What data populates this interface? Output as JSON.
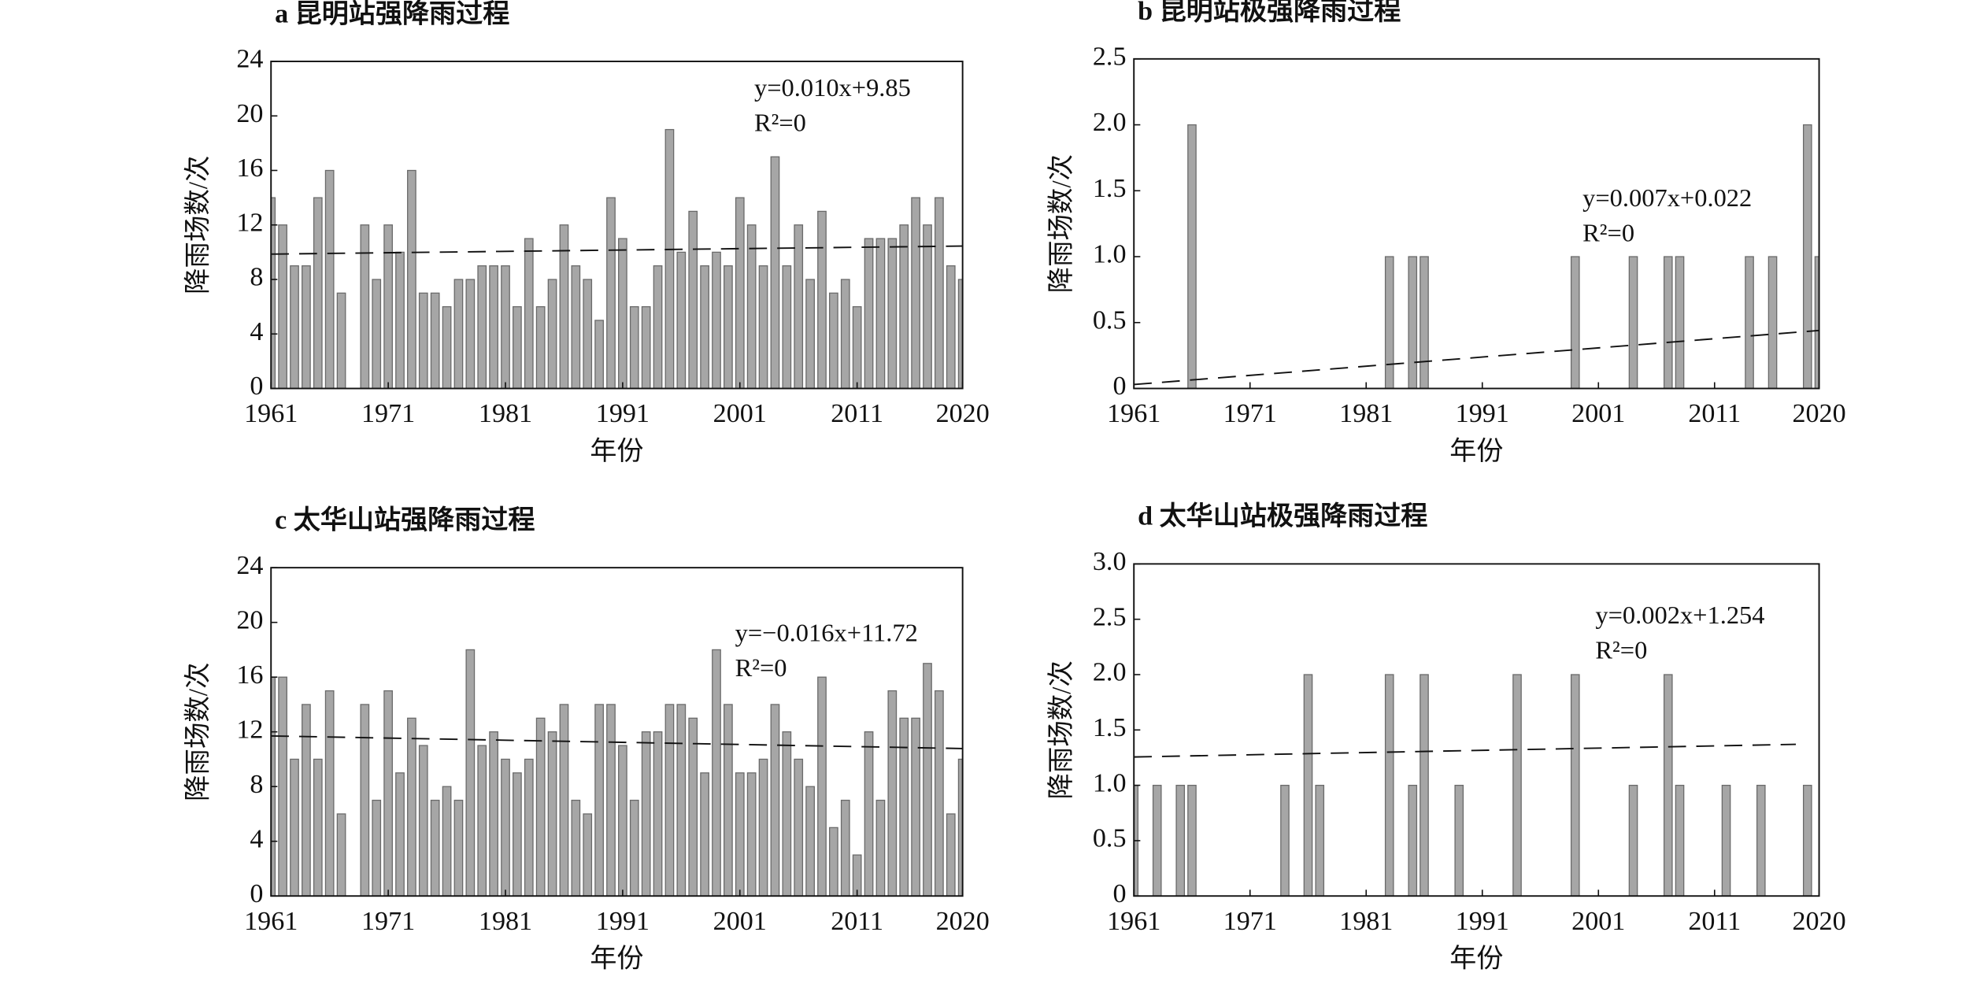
{
  "chart_data": [
    {
      "type": "bar",
      "title": "a 昆明站强降雨过程",
      "xlabel": "年份",
      "ylabel": "降雨场数/次",
      "color": "#a6a6a6",
      "x": [
        1961,
        1962,
        1963,
        1964,
        1965,
        1966,
        1967,
        1968,
        1969,
        1970,
        1971,
        1972,
        1973,
        1974,
        1975,
        1976,
        1977,
        1978,
        1979,
        1980,
        1981,
        1982,
        1983,
        1984,
        1985,
        1986,
        1987,
        1988,
        1989,
        1990,
        1991,
        1992,
        1993,
        1994,
        1995,
        1996,
        1997,
        1998,
        1999,
        2000,
        2001,
        2002,
        2003,
        2004,
        2005,
        2006,
        2007,
        2008,
        2009,
        2010,
        2011,
        2012,
        2013,
        2014,
        2015,
        2016,
        2017,
        2018,
        2019,
        2020
      ],
      "values": [
        14,
        12,
        9,
        9,
        14,
        16,
        7,
        0,
        12,
        8,
        12,
        10,
        16,
        7,
        7,
        6,
        8,
        8,
        9,
        9,
        9,
        6,
        11,
        6,
        8,
        12,
        9,
        8,
        5,
        14,
        11,
        6,
        6,
        9,
        19,
        10,
        13,
        9,
        10,
        9,
        14,
        12,
        9,
        17,
        9,
        12,
        8,
        13,
        7,
        8,
        6,
        11,
        11,
        11,
        12,
        14,
        12,
        14,
        9,
        8
      ],
      "xlim": [
        1961,
        2020
      ],
      "xticks": [
        1961,
        1971,
        1981,
        1991,
        2001,
        2011,
        2020
      ],
      "ylim": [
        0,
        24
      ],
      "yticks": [
        0,
        4,
        8,
        12,
        16,
        20,
        24
      ],
      "annotations": [
        "y=0.010x+9.85",
        "R²=0"
      ],
      "trend": {
        "x": [
          1961,
          2020
        ],
        "values": [
          9.86,
          10.45
        ]
      }
    },
    {
      "type": "bar",
      "title": "b 昆明站极强降雨过程",
      "xlabel": "年份",
      "ylabel": "降雨场数/次",
      "color": "#a6a6a6",
      "x": [
        1961,
        1962,
        1963,
        1964,
        1965,
        1966,
        1967,
        1968,
        1969,
        1970,
        1971,
        1972,
        1973,
        1974,
        1975,
        1976,
        1977,
        1978,
        1979,
        1980,
        1981,
        1982,
        1983,
        1984,
        1985,
        1986,
        1987,
        1988,
        1989,
        1990,
        1991,
        1992,
        1993,
        1994,
        1995,
        1996,
        1997,
        1998,
        1999,
        2000,
        2001,
        2002,
        2003,
        2004,
        2005,
        2006,
        2007,
        2008,
        2009,
        2010,
        2011,
        2012,
        2013,
        2014,
        2015,
        2016,
        2017,
        2018,
        2019,
        2020
      ],
      "values": [
        0,
        0,
        0,
        0,
        0,
        2,
        0,
        0,
        0,
        0,
        0,
        0,
        0,
        0,
        0,
        0,
        0,
        0,
        0,
        0,
        0,
        0,
        1,
        0,
        1,
        1,
        0,
        0,
        0,
        0,
        0,
        0,
        0,
        0,
        0,
        0,
        0,
        0,
        1,
        0,
        0,
        0,
        0,
        1,
        0,
        0,
        1,
        1,
        0,
        0,
        0,
        0,
        0,
        1,
        0,
        1,
        0,
        0,
        2,
        1
      ],
      "xlim": [
        1961,
        2020
      ],
      "xticks": [
        1961,
        1971,
        1981,
        1991,
        2001,
        2011,
        2020
      ],
      "ylim": [
        0,
        2.5
      ],
      "yticks": [
        0,
        0.5,
        {
          "value": 1,
          "label": "1.0"
        },
        1.5,
        {
          "value": 2,
          "label": "2.0"
        },
        2.5
      ],
      "annotations": [
        "y=0.007x+0.022",
        "R²=0"
      ],
      "trend": {
        "x": [
          1961,
          2020
        ],
        "values": [
          0.03,
          0.44
        ]
      }
    },
    {
      "type": "bar",
      "title": "c 太华山站强降雨过程",
      "xlabel": "年份",
      "ylabel": "降雨场数/次",
      "color": "#a6a6a6",
      "x": [
        1961,
        1962,
        1963,
        1964,
        1965,
        1966,
        1967,
        1968,
        1969,
        1970,
        1971,
        1972,
        1973,
        1974,
        1975,
        1976,
        1977,
        1978,
        1979,
        1980,
        1981,
        1982,
        1983,
        1984,
        1985,
        1986,
        1987,
        1988,
        1989,
        1990,
        1991,
        1992,
        1993,
        1994,
        1995,
        1996,
        1997,
        1998,
        1999,
        2000,
        2001,
        2002,
        2003,
        2004,
        2005,
        2006,
        2007,
        2008,
        2009,
        2010,
        2011,
        2012,
        2013,
        2014,
        2015,
        2016,
        2017,
        2018,
        2019,
        2020
      ],
      "values": [
        16,
        16,
        10,
        14,
        10,
        15,
        6,
        0,
        14,
        7,
        15,
        9,
        13,
        11,
        7,
        8,
        7,
        18,
        11,
        12,
        10,
        9,
        10,
        13,
        12,
        14,
        7,
        6,
        14,
        14,
        11,
        7,
        12,
        12,
        14,
        14,
        13,
        9,
        18,
        14,
        9,
        9,
        10,
        14,
        12,
        10,
        8,
        16,
        5,
        7,
        3,
        12,
        7,
        15,
        13,
        13,
        17,
        15,
        6,
        10
      ],
      "xlim": [
        1961,
        2020
      ],
      "xticks": [
        1961,
        1971,
        1981,
        1991,
        2001,
        2011,
        2020
      ],
      "ylim": [
        0,
        24
      ],
      "yticks": [
        0,
        4,
        8,
        12,
        16,
        20,
        24
      ],
      "annotations": [
        "y=−0.016x+11.72",
        "R²=0"
      ],
      "trend": {
        "x": [
          1961,
          2020
        ],
        "values": [
          11.7,
          10.78
        ]
      }
    },
    {
      "type": "bar",
      "title": "d 太华山站极强降雨过程",
      "xlabel": "年份",
      "ylabel": "降雨场数/次",
      "color": "#a6a6a6",
      "x": [
        1961,
        1962,
        1963,
        1964,
        1965,
        1966,
        1967,
        1968,
        1969,
        1970,
        1971,
        1972,
        1973,
        1974,
        1975,
        1976,
        1977,
        1978,
        1979,
        1980,
        1981,
        1982,
        1983,
        1984,
        1985,
        1986,
        1987,
        1988,
        1989,
        1990,
        1991,
        1992,
        1993,
        1994,
        1995,
        1996,
        1997,
        1998,
        1999,
        2000,
        2001,
        2002,
        2003,
        2004,
        2005,
        2006,
        2007,
        2008,
        2009,
        2010,
        2011,
        2012,
        2013,
        2014,
        2015,
        2016,
        2017,
        2018,
        2019,
        2020
      ],
      "values": [
        1,
        0,
        1,
        0,
        1,
        1,
        0,
        0,
        0,
        0,
        0,
        0,
        0,
        1,
        0,
        2,
        1,
        0,
        0,
        0,
        0,
        0,
        2,
        0,
        1,
        2,
        0,
        0,
        1,
        0,
        0,
        0,
        0,
        2,
        0,
        0,
        0,
        0,
        2,
        0,
        0,
        0,
        0,
        1,
        0,
        0,
        2,
        1,
        0,
        0,
        0,
        1,
        0,
        0,
        1,
        0,
        0,
        0,
        1,
        0
      ],
      "xlim": [
        1961,
        2020
      ],
      "xticks": [
        1961,
        1971,
        1981,
        1991,
        2001,
        2011,
        2020
      ],
      "ylim": [
        0,
        3
      ],
      "yticks": [
        0,
        0.5,
        {
          "value": 1,
          "label": "1.0"
        },
        1.5,
        {
          "value": 2,
          "label": "2.0"
        },
        2.5,
        {
          "value": 3,
          "label": "3.0"
        }
      ],
      "annotations": [
        "y=0.002x+1.254",
        "R²=0"
      ],
      "trend": {
        "x": [
          1961,
          2018
        ],
        "values": [
          1.256,
          1.37
        ]
      }
    }
  ]
}
